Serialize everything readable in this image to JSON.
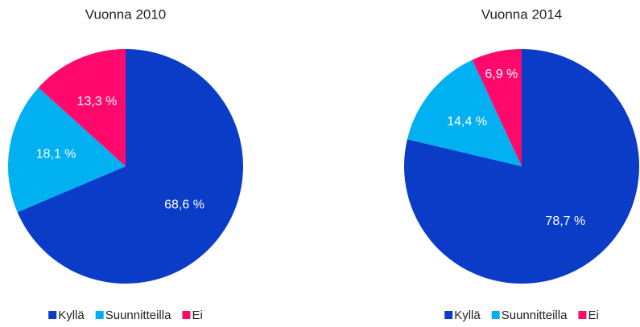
{
  "chart_data": [
    {
      "type": "pie",
      "title": "Vuonna 2010",
      "categories": [
        "Kyllä",
        "Suunnitteilla",
        "Ei"
      ],
      "values": [
        68.6,
        18.1,
        13.3
      ],
      "value_labels": [
        "68,6 %",
        "18,1 %",
        "13,3 %"
      ],
      "colors": [
        "#0a3cc8",
        "#00b0f0",
        "#ff0a6c"
      ],
      "legend": "bottom"
    },
    {
      "type": "pie",
      "title": "Vuonna 2014",
      "categories": [
        "Kyllä",
        "Suunnitteilla",
        "Ei"
      ],
      "values": [
        78.7,
        14.4,
        6.9
      ],
      "value_labels": [
        "78,7 %",
        "14,4 %",
        "6,9 %"
      ],
      "colors": [
        "#0a3cc8",
        "#00b0f0",
        "#ff0a6c"
      ],
      "legend": "bottom"
    }
  ]
}
